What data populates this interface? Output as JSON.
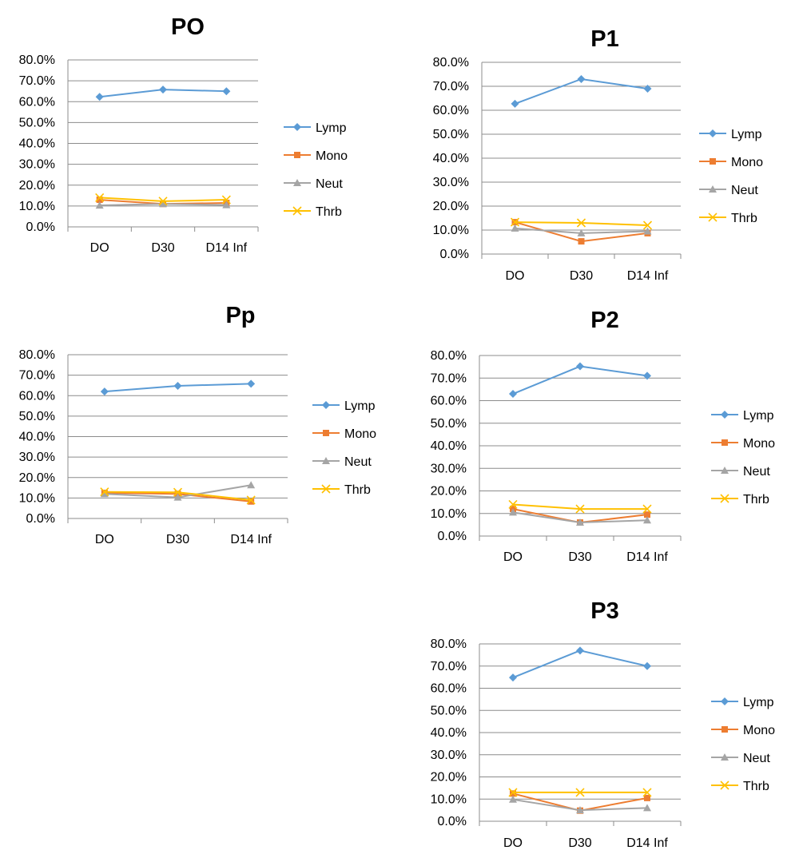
{
  "chart_data": [
    {
      "type": "line",
      "title": "PO",
      "categories": [
        "DO",
        "D30",
        "D14 Inf"
      ],
      "y_ticks": [
        "0.0%",
        "10.0%",
        "20.0%",
        "30.0%",
        "40.0%",
        "50.0%",
        "60.0%",
        "70.0%",
        "80.0%"
      ],
      "ylim": [
        0,
        80
      ],
      "grid": true,
      "legend": "right",
      "series": [
        {
          "name": "Lymp",
          "values": [
            62.3,
            65.8,
            65.0
          ],
          "color": "#5b9bd5",
          "marker": "diamond"
        },
        {
          "name": "Mono",
          "values": [
            13.0,
            11.0,
            11.5
          ],
          "color": "#ed7d31",
          "marker": "square"
        },
        {
          "name": "Neut",
          "values": [
            10.3,
            11.0,
            10.5
          ],
          "color": "#a5a5a5",
          "marker": "triangle"
        },
        {
          "name": "Thrb",
          "values": [
            14.0,
            12.3,
            13.0
          ],
          "color": "#ffc000",
          "marker": "x"
        }
      ]
    },
    {
      "type": "line",
      "title": "P1",
      "categories": [
        "DO",
        "D30",
        "D14 Inf"
      ],
      "y_ticks": [
        "0.0%",
        "10.0%",
        "20.0%",
        "30.0%",
        "40.0%",
        "50.0%",
        "60.0%",
        "70.0%",
        "80.0%"
      ],
      "ylim": [
        0,
        80
      ],
      "grid": true,
      "legend": "right",
      "series": [
        {
          "name": "Lymp",
          "values": [
            62.7,
            73.0,
            69.0
          ],
          "color": "#5b9bd5",
          "marker": "diamond"
        },
        {
          "name": "Mono",
          "values": [
            13.3,
            5.3,
            8.7
          ],
          "color": "#ed7d31",
          "marker": "square"
        },
        {
          "name": "Neut",
          "values": [
            10.7,
            8.7,
            9.5
          ],
          "color": "#a5a5a5",
          "marker": "triangle"
        },
        {
          "name": "Thrb",
          "values": [
            13.3,
            13.0,
            12.0
          ],
          "color": "#ffc000",
          "marker": "x"
        }
      ]
    },
    {
      "type": "line",
      "title": "Pp",
      "categories": [
        "DO",
        "D30",
        "D14 Inf"
      ],
      "y_ticks": [
        "0.0%",
        "10.0%",
        "20.0%",
        "30.0%",
        "40.0%",
        "50.0%",
        "60.0%",
        "70.0%",
        "80.0%"
      ],
      "ylim": [
        0,
        80
      ],
      "grid": true,
      "legend": "right",
      "series": [
        {
          "name": "Lymp",
          "values": [
            62.0,
            64.8,
            65.8
          ],
          "color": "#5b9bd5",
          "marker": "diamond"
        },
        {
          "name": "Mono",
          "values": [
            12.5,
            12.0,
            8.3
          ],
          "color": "#ed7d31",
          "marker": "square"
        },
        {
          "name": "Neut",
          "values": [
            12.0,
            10.3,
            16.3
          ],
          "color": "#a5a5a5",
          "marker": "triangle"
        },
        {
          "name": "Thrb",
          "values": [
            13.0,
            12.8,
            9.0
          ],
          "color": "#ffc000",
          "marker": "x"
        }
      ]
    },
    {
      "type": "line",
      "title": "P2",
      "categories": [
        "DO",
        "D30",
        "D14 Inf"
      ],
      "y_ticks": [
        "0.0%",
        "10.0%",
        "20.0%",
        "30.0%",
        "40.0%",
        "50.0%",
        "60.0%",
        "70.0%",
        "80.0%"
      ],
      "ylim": [
        0,
        80
      ],
      "grid": true,
      "legend": "right",
      "series": [
        {
          "name": "Lymp",
          "values": [
            63.0,
            75.2,
            71.0
          ],
          "color": "#5b9bd5",
          "marker": "diamond"
        },
        {
          "name": "Mono",
          "values": [
            12.0,
            6.0,
            9.5
          ],
          "color": "#ed7d31",
          "marker": "square"
        },
        {
          "name": "Neut",
          "values": [
            10.5,
            6.0,
            7.0
          ],
          "color": "#a5a5a5",
          "marker": "triangle"
        },
        {
          "name": "Thrb",
          "values": [
            14.0,
            12.0,
            12.0
          ],
          "color": "#ffc000",
          "marker": "x"
        }
      ]
    },
    {
      "type": "line",
      "title": "P3",
      "categories": [
        "DO",
        "D30",
        "D14 Inf"
      ],
      "y_ticks": [
        "0.0%",
        "10.0%",
        "20.0%",
        "30.0%",
        "40.0%",
        "50.0%",
        "60.0%",
        "70.0%",
        "80.0%"
      ],
      "ylim": [
        0,
        80
      ],
      "grid": true,
      "legend": "right",
      "series": [
        {
          "name": "Lymp",
          "values": [
            64.8,
            77.0,
            70.0
          ],
          "color": "#5b9bd5",
          "marker": "diamond"
        },
        {
          "name": "Mono",
          "values": [
            12.5,
            4.8,
            10.5
          ],
          "color": "#ed7d31",
          "marker": "square"
        },
        {
          "name": "Neut",
          "values": [
            9.8,
            5.0,
            6.0
          ],
          "color": "#a5a5a5",
          "marker": "triangle"
        },
        {
          "name": "Thrb",
          "values": [
            13.0,
            13.0,
            13.0
          ],
          "color": "#ffc000",
          "marker": "x"
        }
      ]
    }
  ]
}
